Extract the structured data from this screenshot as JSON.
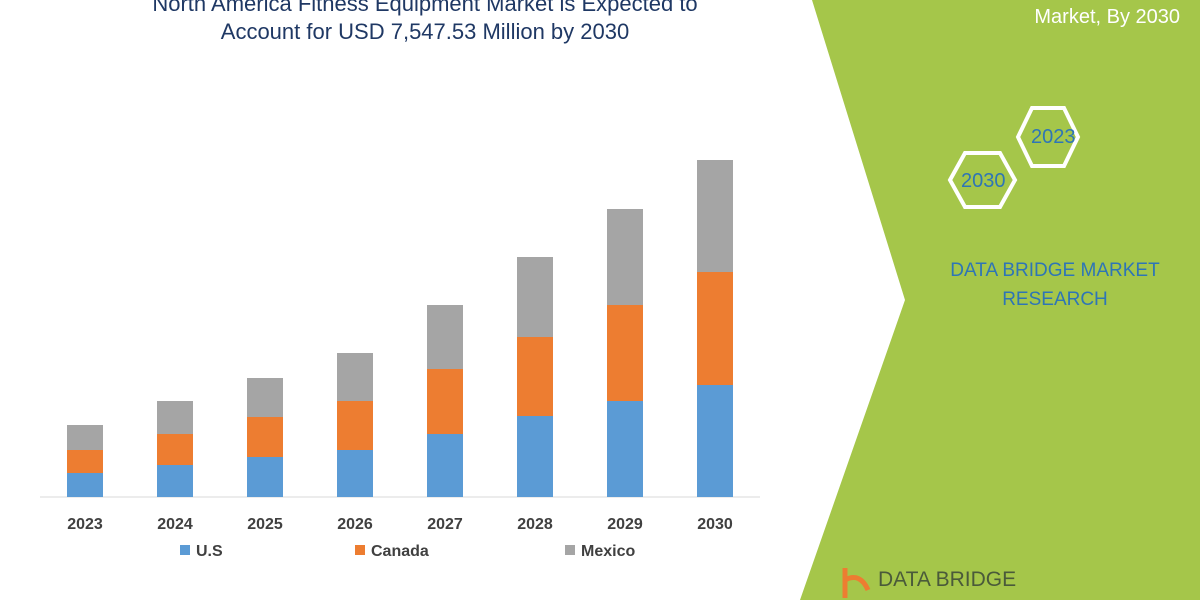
{
  "header": {
    "title_line1": "North America Fitness Equipment Market is Expected to",
    "title_line2": "Account for USD 7,547.53 Million by 2030"
  },
  "side_panel": {
    "title": "Market, By 2030",
    "hex_1": "2023",
    "hex_2": "2030",
    "brand": "DATA BRIDGE MARKET RESEARCH",
    "logo_text": "DATA BRIDGE",
    "color": "#a5c64a"
  },
  "chart_data": {
    "type": "bar",
    "stacked": true,
    "categories": [
      "2023",
      "2024",
      "2025",
      "2026",
      "2027",
      "2028",
      "2029",
      "2030"
    ],
    "series": [
      {
        "name": "U.S",
        "color": "#5b9bd5",
        "values": [
          24,
          32,
          40,
          47,
          63,
          81,
          96,
          112
        ]
      },
      {
        "name": "Canada",
        "color": "#ed7d31",
        "values": [
          23,
          31,
          40,
          49,
          65,
          79,
          96,
          113
        ]
      },
      {
        "name": "Mexico",
        "color": "#a5a5a5",
        "values": [
          25,
          33,
          39,
          48,
          64,
          80,
          96,
          112
        ]
      }
    ],
    "ylim": [
      0,
      340
    ],
    "y_axis_shown": false,
    "grid": false,
    "legend": "bottom"
  }
}
